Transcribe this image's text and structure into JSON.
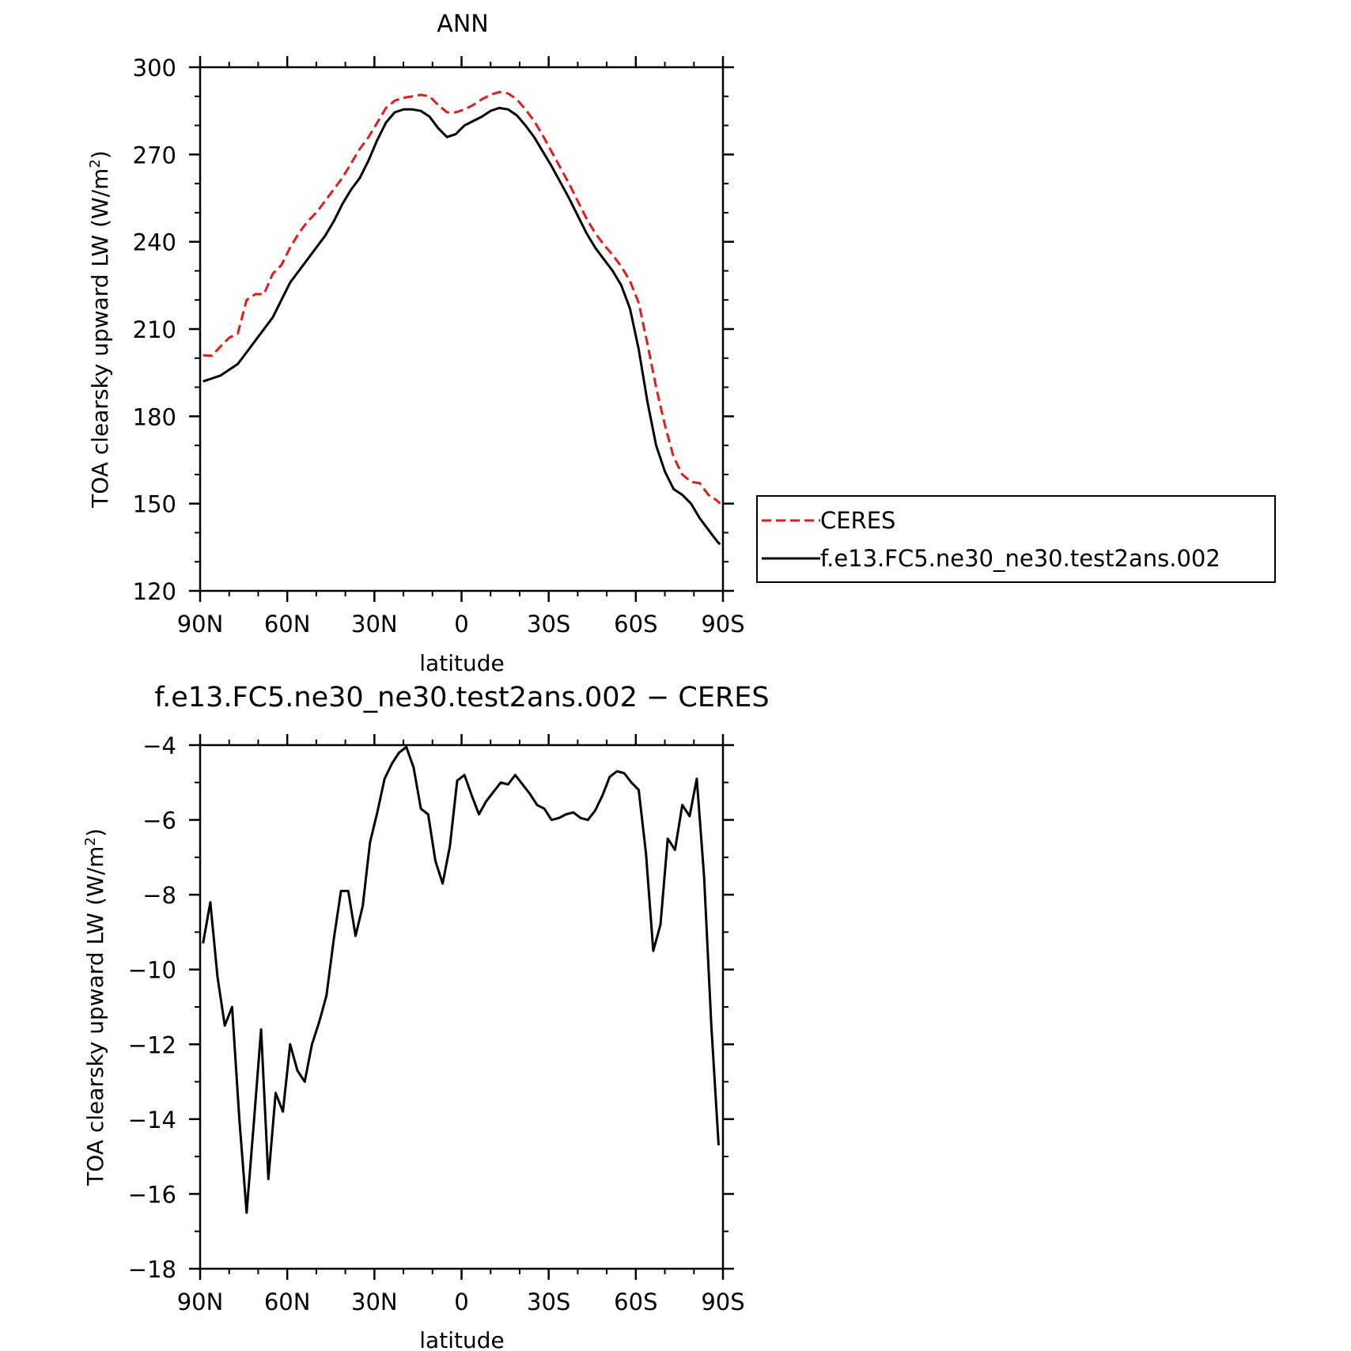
{
  "chart_data": [
    {
      "type": "line",
      "title": "ANN",
      "xlabel": "latitude",
      "ylabel_base": "TOA clearsky upward LW (W/m",
      "ylabel_sup": "2",
      "ylabel_end": ")",
      "xlim": [
        90,
        -90
      ],
      "ylim": [
        120,
        300
      ],
      "xticks": [
        90,
        60,
        30,
        0,
        -30,
        -60,
        -90
      ],
      "xtick_labels": [
        "90N",
        "60N",
        "30N",
        "0",
        "30S",
        "60S",
        "90S"
      ],
      "yticks": [
        120,
        150,
        180,
        210,
        240,
        270,
        300
      ],
      "ytick_labels": [
        "120",
        "150",
        "180",
        "210",
        "240",
        "270",
        "300"
      ],
      "grid": false,
      "legend_position": "right",
      "series": [
        {
          "name": "CERES",
          "color": "#e41a1c",
          "dash": "dashed",
          "x": [
            89,
            86,
            83,
            80,
            77,
            74,
            71,
            68,
            65,
            62,
            59,
            56,
            53,
            50,
            47,
            44,
            41,
            38,
            35,
            32,
            29,
            26,
            23,
            20,
            17,
            14,
            11,
            8,
            5,
            2,
            -1,
            -4,
            -7,
            -10,
            -13,
            -16,
            -19,
            -22,
            -25,
            -28,
            -31,
            -34,
            -37,
            -40,
            -43,
            -46,
            -49,
            -52,
            -55,
            -58,
            -61,
            -64,
            -67,
            -70,
            -73,
            -76,
            -79,
            -82,
            -85,
            -88,
            -89
          ],
          "y": [
            201,
            200.8,
            204,
            207,
            208.5,
            220,
            222,
            222,
            229,
            232,
            238,
            243,
            247,
            250,
            254,
            258,
            262,
            267,
            272,
            276,
            281,
            286,
            288.5,
            289.5,
            290,
            290.5,
            290,
            287,
            284.5,
            284.5,
            285.5,
            287,
            289,
            290.5,
            291.5,
            291,
            289,
            285.5,
            281.5,
            276.5,
            271,
            265.5,
            260,
            254,
            248,
            243,
            239,
            235.5,
            231.5,
            226.5,
            219,
            205,
            190,
            177,
            166,
            160,
            157.5,
            157,
            153,
            151,
            150
          ]
        },
        {
          "name": "f.e13.FC5.ne30_ne30.test2ans.002",
          "color": "#000000",
          "dash": "solid",
          "x": [
            89,
            86,
            83,
            80,
            77,
            74,
            71,
            68,
            65,
            62,
            59,
            56,
            53,
            50,
            47,
            44,
            41,
            38,
            35,
            32,
            29,
            26,
            23,
            20,
            17,
            14,
            11,
            8,
            5,
            2,
            -1,
            -4,
            -7,
            -10,
            -13,
            -16,
            -19,
            -22,
            -25,
            -28,
            -31,
            -34,
            -37,
            -40,
            -43,
            -46,
            -49,
            -52,
            -55,
            -58,
            -61,
            -64,
            -67,
            -70,
            -73,
            -76,
            -79,
            -82,
            -85,
            -88,
            -89
          ],
          "y": [
            192,
            193,
            194,
            196,
            198,
            202,
            206,
            210,
            214,
            220,
            226,
            230,
            234,
            238,
            242,
            247,
            253,
            258,
            262,
            268,
            275,
            281,
            284.5,
            285.5,
            285.5,
            285,
            283,
            279,
            276,
            277,
            280,
            281.5,
            283,
            285,
            286,
            285.5,
            283.5,
            280,
            276,
            271,
            266,
            260.5,
            255,
            249,
            243,
            238,
            234,
            230,
            225,
            217,
            203,
            185,
            170,
            161,
            155,
            153,
            150,
            145,
            141,
            137,
            136
          ]
        }
      ]
    },
    {
      "type": "line",
      "title": "f.e13.FC5.ne30_ne30.test2ans.002 − CERES",
      "xlabel": "latitude",
      "ylabel_base": "TOA clearsky upward LW (W/m",
      "ylabel_sup": "2",
      "ylabel_end": ")",
      "xlim": [
        90,
        -90
      ],
      "ylim": [
        -18,
        -4
      ],
      "xticks": [
        90,
        60,
        30,
        0,
        -30,
        -60,
        -90
      ],
      "xtick_labels": [
        "90N",
        "60N",
        "30N",
        "0",
        "30S",
        "60S",
        "90S"
      ],
      "yticks": [
        -18,
        -16,
        -14,
        -12,
        -10,
        -8,
        -6,
        -4
      ],
      "ytick_labels": [
        "−18",
        "−16",
        "−14",
        "−12",
        "−10",
        "−8",
        "−6",
        "−4"
      ],
      "grid": false,
      "series": [
        {
          "color": "#000000",
          "dash": "solid",
          "x": [
            89,
            86.5,
            84,
            81.5,
            79,
            76.5,
            74,
            71.5,
            69,
            66.5,
            64,
            61.5,
            59,
            56.5,
            54,
            51.5,
            49,
            46.5,
            44,
            41.5,
            39,
            36.5,
            34,
            31.5,
            29,
            26.5,
            24,
            21.5,
            19,
            16.5,
            14,
            11.5,
            9,
            6.5,
            4,
            1.5,
            -1,
            -3.5,
            -6,
            -8.5,
            -11,
            -13.5,
            -16,
            -18.5,
            -21,
            -23.5,
            -26,
            -28.5,
            -31,
            -33.5,
            -36,
            -38.5,
            -41,
            -43.5,
            -46,
            -48.5,
            -51,
            -53.5,
            -56,
            -58.5,
            -61,
            -63.5,
            -66,
            -68.5,
            -71,
            -73.5,
            -76,
            -78.5,
            -81,
            -83.5,
            -86,
            -88.5
          ],
          "y": [
            -9.3,
            -8.2,
            -10.2,
            -11.5,
            -11,
            -14,
            -16.5,
            -14.1,
            -11.6,
            -15.6,
            -13.3,
            -13.8,
            -12,
            -12.7,
            -13,
            -12,
            -11.4,
            -10.7,
            -9.2,
            -7.9,
            -7.9,
            -9.1,
            -8.3,
            -6.6,
            -5.8,
            -4.9,
            -4.5,
            -4.2,
            -4.05,
            -4.6,
            -5.7,
            -5.85,
            -7.1,
            -7.7,
            -6.7,
            -4.95,
            -4.8,
            -5.35,
            -5.85,
            -5.5,
            -5.25,
            -5,
            -5.05,
            -4.8,
            -5.05,
            -5.3,
            -5.6,
            -5.7,
            -6,
            -5.95,
            -5.85,
            -5.8,
            -5.95,
            -6,
            -5.75,
            -5.35,
            -4.85,
            -4.7,
            -4.75,
            -5,
            -5.2,
            -6.9,
            -9.5,
            -8.8,
            -6.5,
            -6.8,
            -5.6,
            -5.9,
            -4.9,
            -7.5,
            -11.5,
            -14.7
          ]
        }
      ]
    }
  ]
}
